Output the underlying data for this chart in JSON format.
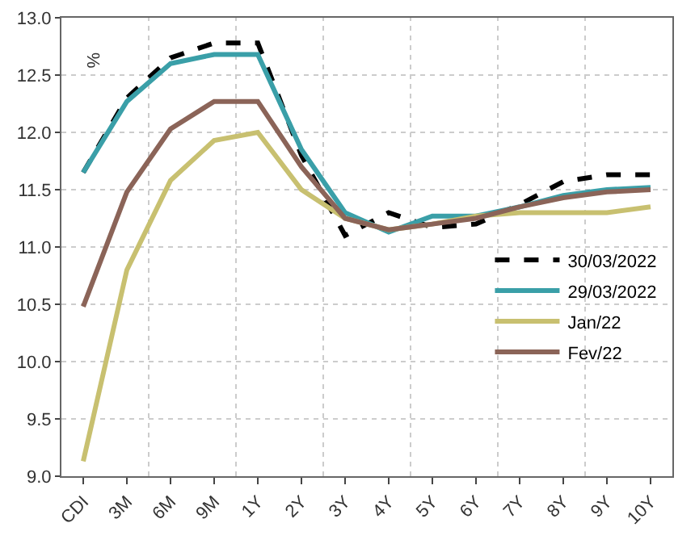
{
  "chart_data": {
    "type": "line",
    "ylabel": "%",
    "categories": [
      "CDI",
      "3M",
      "6M",
      "9M",
      "1Y",
      "2Y",
      "3Y",
      "4Y",
      "5Y",
      "6Y",
      "7Y",
      "8Y",
      "9Y",
      "10Y"
    ],
    "series": [
      {
        "name": "30/03/2022",
        "color": "#000000",
        "line_style": "dashed",
        "values": [
          11.65,
          12.3,
          12.65,
          12.78,
          12.78,
          11.8,
          11.1,
          11.3,
          11.17,
          11.2,
          11.37,
          11.57,
          11.63,
          11.63
        ]
      },
      {
        "name": "29/03/2022",
        "color": "#3a9fa8",
        "values": [
          11.65,
          12.27,
          12.6,
          12.68,
          12.68,
          11.85,
          11.3,
          11.13,
          11.27,
          11.27,
          11.35,
          11.45,
          11.5,
          11.52
        ]
      },
      {
        "name": "Jan/22",
        "color": "#c8c070",
        "values": [
          9.13,
          10.8,
          11.58,
          11.93,
          12.0,
          11.5,
          11.25,
          11.15,
          11.2,
          11.27,
          11.3,
          11.3,
          11.3,
          11.35
        ]
      },
      {
        "name": "Fev/22",
        "color": "#8b6458",
        "values": [
          10.48,
          11.48,
          12.03,
          12.27,
          12.27,
          11.7,
          11.25,
          11.15,
          11.2,
          11.25,
          11.35,
          11.43,
          11.48,
          11.5
        ]
      }
    ],
    "ylim": [
      9.0,
      13.0
    ],
    "yticks": [
      {
        "value": 9.0,
        "label": "9.0"
      },
      {
        "value": 9.5,
        "label": "9.5"
      },
      {
        "value": 10.0,
        "label": "10.0"
      },
      {
        "value": 10.5,
        "label": "10.5"
      },
      {
        "value": 11.0,
        "label": "11.0"
      },
      {
        "value": 11.5,
        "label": "11.5"
      },
      {
        "value": 12.0,
        "label": "12.0"
      },
      {
        "value": 12.5,
        "label": "12.5"
      },
      {
        "value": 13.0,
        "label": "13.0"
      }
    ],
    "grid": true,
    "legend": "bottom right",
    "line_style": "solid",
    "marker": "none"
  }
}
